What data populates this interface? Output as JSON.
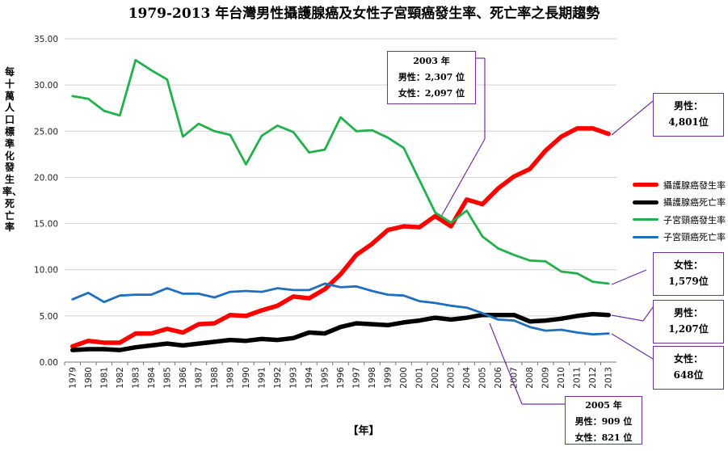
{
  "chart_data": {
    "type": "line",
    "title": "1979-2013 年台灣男性攝護腺癌及女性子宮頸癌發生率、死亡率之長期趨勢",
    "ylabel": "每十萬人口標準化發生率、死亡率",
    "xlabel": "【年】",
    "ylim": [
      0,
      35
    ],
    "yticks": [
      "0.00",
      "5.00",
      "10.00",
      "15.00",
      "20.00",
      "25.00",
      "30.00",
      "35.00"
    ],
    "x": [
      "1979",
      "1980",
      "1981",
      "1982",
      "1983",
      "1984",
      "1985",
      "1986",
      "1987",
      "1988",
      "1989",
      "1990",
      "1991",
      "1992",
      "1993",
      "1994",
      "1995",
      "1996",
      "1997",
      "1998",
      "1999",
      "2000",
      "2001",
      "2002",
      "2003",
      "2004",
      "2005",
      "2006",
      "2007",
      "2008",
      "2009",
      "2010",
      "2011",
      "2012",
      "2013"
    ],
    "series": [
      {
        "name": "攝護腺癌發生率",
        "color": "#ff0000",
        "width": 5.5,
        "values": [
          1.7,
          2.3,
          2.1,
          2.1,
          3.1,
          3.1,
          3.6,
          3.2,
          4.1,
          4.2,
          5.1,
          5.0,
          5.6,
          6.1,
          7.1,
          6.9,
          7.9,
          9.5,
          11.6,
          12.8,
          14.3,
          14.7,
          14.6,
          15.8,
          14.7,
          17.6,
          17.1,
          18.8,
          20.1,
          20.9,
          22.9,
          24.4,
          25.3,
          25.3,
          24.7
        ]
      },
      {
        "name": "攝護腺癌死亡率",
        "color": "#000000",
        "width": 5.5,
        "values": [
          1.3,
          1.4,
          1.4,
          1.3,
          1.6,
          1.8,
          2.0,
          1.8,
          2.0,
          2.2,
          2.4,
          2.3,
          2.5,
          2.4,
          2.6,
          3.2,
          3.1,
          3.8,
          4.2,
          4.1,
          4.0,
          4.3,
          4.5,
          4.8,
          4.6,
          4.8,
          5.1,
          5.1,
          5.1,
          4.4,
          4.5,
          4.7,
          5.0,
          5.2,
          5.1
        ]
      },
      {
        "name": "子宮頸癌發生率",
        "color": "#22b14c",
        "width": 2.8,
        "values": [
          28.8,
          28.5,
          27.2,
          26.7,
          32.7,
          31.6,
          30.6,
          24.4,
          25.8,
          25.0,
          24.6,
          21.4,
          24.5,
          25.6,
          24.9,
          22.7,
          23.0,
          26.5,
          25.0,
          25.1,
          24.3,
          23.2,
          19.7,
          16.2,
          15.1,
          16.4,
          13.6,
          12.3,
          11.6,
          11.0,
          10.9,
          9.8,
          9.6,
          8.7,
          8.5
        ]
      },
      {
        "name": "子宮頸癌死亡率",
        "color": "#1f6fbf",
        "width": 2.8,
        "values": [
          6.8,
          7.5,
          6.5,
          7.2,
          7.3,
          7.3,
          8.0,
          7.4,
          7.4,
          7.0,
          7.6,
          7.7,
          7.6,
          8.0,
          7.8,
          7.8,
          8.5,
          8.1,
          8.2,
          7.7,
          7.3,
          7.2,
          6.6,
          6.4,
          6.1,
          5.9,
          5.3,
          4.6,
          4.5,
          3.8,
          3.4,
          3.5,
          3.2,
          3.0,
          3.1
        ]
      }
    ],
    "legend_position": "right",
    "annotations": {
      "box2003": [
        "2003 年",
        "男性：2,307 位",
        "女性：2,097 位"
      ],
      "box2005": [
        "2005 年",
        "男性：909 位",
        "女性：821 位"
      ],
      "male_incidence": [
        "男性：",
        "4,801位"
      ],
      "female_incidence": [
        "女性：",
        "1,579位"
      ],
      "male_mortality": [
        "男性：",
        "1,207位"
      ],
      "female_mortality": [
        "女性：",
        "648位"
      ]
    }
  }
}
